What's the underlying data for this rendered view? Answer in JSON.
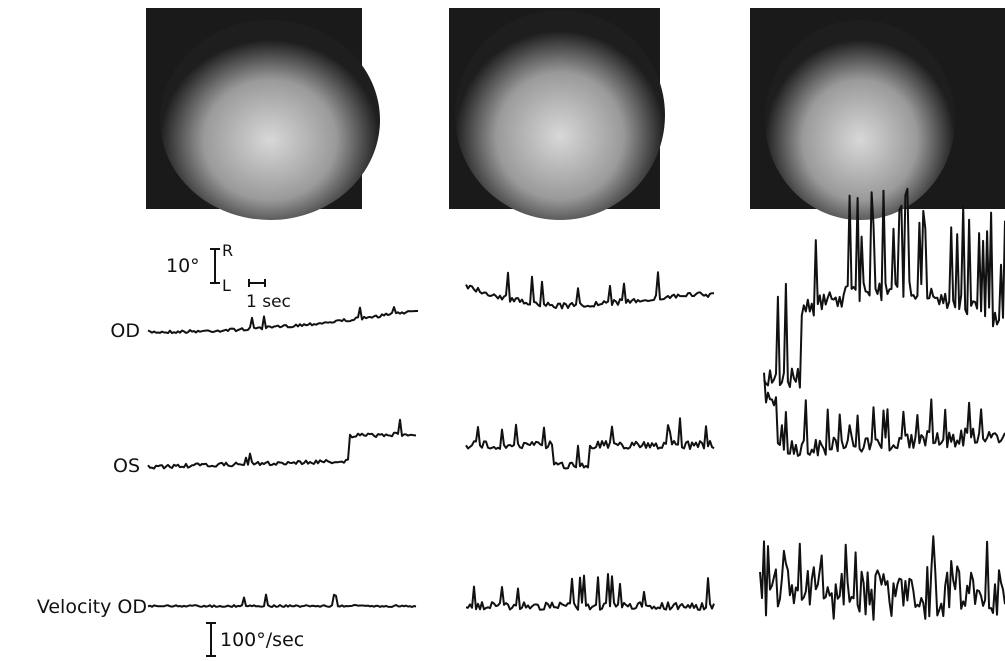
{
  "scale": {
    "amplitude": "10°",
    "right": "R",
    "left": "L",
    "time": "1 sec",
    "velocity": "100°/sec"
  },
  "row_labels": [
    "OD",
    "OS",
    "Velocity OD"
  ]
}
